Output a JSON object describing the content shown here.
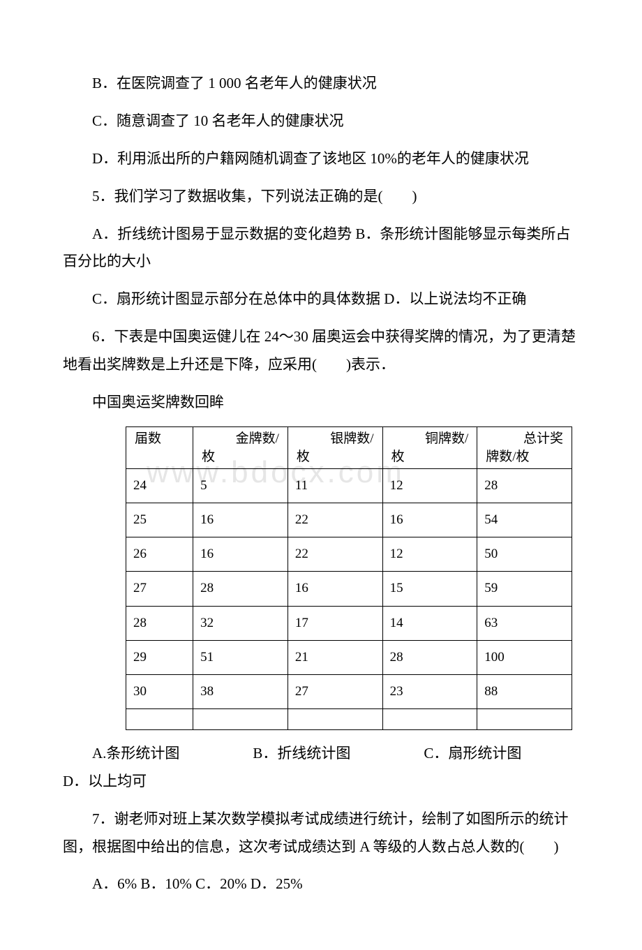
{
  "q4": {
    "optB": "B．在医院调查了 1 000 名老年人的健康状况",
    "optC": "C．随意调查了 10 名老年人的健康状况",
    "optD": "D．利用派出所的户籍网随机调查了该地区 10%的老年人的健康状况"
  },
  "q5": {
    "stem": "5．我们学习了数据收集，下列说法正确的是(　　)",
    "optsAB": "A．折线统计图易于显示数据的变化趋势 B．条形统计图能够显示每类所占百分比的大小",
    "optsCD": "C．扇形统计图显示部分在总体中的具体数据 D．以上说法均不正确"
  },
  "q6": {
    "stem": "6．下表是中国奥运健儿在 24～30 届奥运会中获得奖牌的情况，为了更清楚地看出奖牌数是上升还是下降，应采用(　　)表示．",
    "caption": "中国奥运奖牌数回眸",
    "headers": [
      "届数",
      "金牌数/枚",
      "银牌数/枚",
      "铜牌数/枚",
      "总计奖牌数/枚"
    ],
    "headers_split": [
      [
        "",
        "届数"
      ],
      [
        "金牌数/",
        "枚"
      ],
      [
        "银牌数/",
        "枚"
      ],
      [
        "铜牌数/",
        "枚"
      ],
      [
        "总计奖",
        "牌数/枚"
      ]
    ],
    "rows": [
      [
        "24",
        "5",
        "11",
        "12",
        "28"
      ],
      [
        "25",
        "16",
        "22",
        "16",
        "54"
      ],
      [
        "26",
        "16",
        "22",
        "12",
        "50"
      ],
      [
        "27",
        "28",
        "16",
        "15",
        "59"
      ],
      [
        "28",
        "32",
        "17",
        "14",
        "63"
      ],
      [
        "29",
        "51",
        "21",
        "28",
        "100"
      ],
      [
        "30",
        "38",
        "27",
        "23",
        "88"
      ],
      [
        "",
        "",
        "",
        "",
        ""
      ]
    ],
    "opts": "A.条形统计图　　　　　B．折线统计图　　　　　C．扇形统计图　　　　　D．以上均可",
    "watermark": "www.bdocx.com"
  },
  "q7": {
    "stem": "7．谢老师对班上某次数学模拟考试成绩进行统计，绘制了如图所示的统计图，根据图中给出的信息，这次考试成绩达到 A 等级的人数占总人数的(　　)",
    "opts": "A．6% B．10% C．20% D．25%"
  },
  "table_style": {
    "border_color": "#000000",
    "font_size_pt": 14,
    "col_count": 5,
    "row_count": 9,
    "watermark_color": "#e6e6e6"
  }
}
